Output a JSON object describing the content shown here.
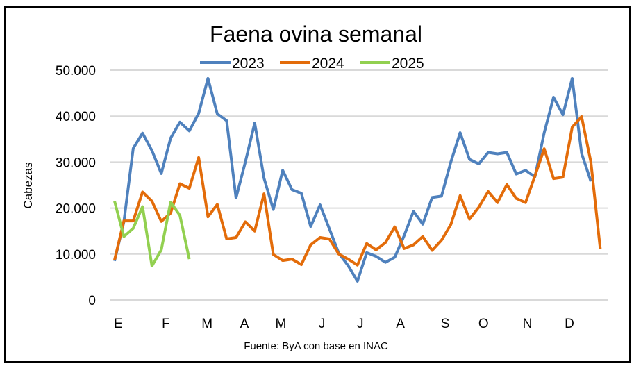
{
  "chart_data": {
    "type": "line",
    "title": "Faena ovina semanal",
    "ylabel": "Cabezas",
    "xlabel": "",
    "source": "Fuente: ByA con base en INAC",
    "ylim": [
      0,
      50000
    ],
    "yticks": [
      0,
      10000,
      20000,
      30000,
      40000,
      50000
    ],
    "ytick_labels": [
      "0",
      "10.000",
      "20.000",
      "30.000",
      "40.000",
      "50.000"
    ],
    "x_unit": "week",
    "xtick_labels": [
      "E",
      "F",
      "M",
      "A",
      "M",
      "J",
      "J",
      "A",
      "S",
      "O",
      "N",
      "D"
    ],
    "xtick_weeks": [
      0.4,
      5.5,
      9.9,
      13.9,
      17.8,
      22.2,
      26.3,
      30.6,
      35.4,
      39.5,
      44.2,
      48.7
    ],
    "grid": true,
    "legend_position": "top",
    "series": [
      {
        "name": "2023",
        "color": "#4f81bd",
        "values": [
          8500,
          17000,
          33000,
          36300,
          32500,
          27500,
          35200,
          38700,
          36800,
          40600,
          48200,
          40500,
          39000,
          22200,
          30000,
          38500,
          26500,
          19700,
          28200,
          24000,
          23200,
          16000,
          20700,
          15500,
          10200,
          7500,
          4100,
          10300,
          9500,
          8200,
          9300,
          14000,
          19300,
          16500,
          22300,
          22600,
          30000,
          36400,
          30600,
          29600,
          32100,
          31800,
          32100,
          27400,
          28200,
          26800,
          36400,
          44100,
          40300,
          48200,
          31900,
          25800
        ]
      },
      {
        "name": "2024",
        "color": "#e36c0a",
        "values": [
          8700,
          17200,
          17200,
          23500,
          21500,
          17100,
          18900,
          25300,
          24300,
          31000,
          18100,
          20800,
          13300,
          13600,
          17000,
          15000,
          23100,
          9900,
          8600,
          8900,
          7700,
          12000,
          13600,
          13300,
          10000,
          8900,
          7600,
          12300,
          10900,
          12500,
          15900,
          11200,
          12000,
          13800,
          10800,
          13000,
          16400,
          22700,
          17600,
          20200,
          23600,
          21200,
          25100,
          22100,
          21200,
          27000,
          32900,
          26400,
          26700,
          37600,
          39900,
          30000,
          11100
        ]
      },
      {
        "name": "2025",
        "color": "#92d050",
        "values": [
          21500,
          13800,
          15600,
          20300,
          7400,
          10900,
          21300,
          18400,
          8900
        ]
      }
    ]
  }
}
